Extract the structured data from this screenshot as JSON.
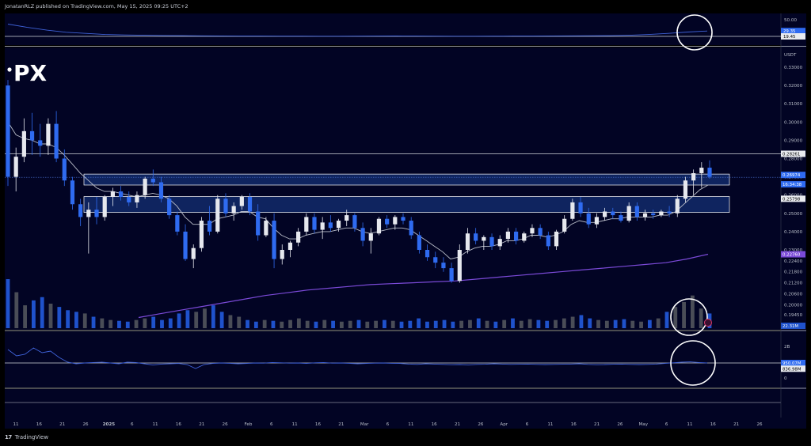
{
  "header": {
    "publisher_line": "JonatanRLZ published on TradingView.com, May 15, 2025 09:25 UTC+2"
  },
  "footer": {
    "logo_mark": "17",
    "brand": "TradingView"
  },
  "logo": {
    "text": "PX"
  },
  "colors": {
    "background": "#000000",
    "pane": "#020424",
    "up_candle": "#e6e8ee",
    "down_candle": "#2f6bf0",
    "ema_fast": "#b8bcc8",
    "ema_slow": "#7b4ad8",
    "zone_fill": "#1b3f8f",
    "volume_up": "#4a4d57",
    "volume_down": "#1f52cc"
  },
  "chart_data": [
    {
      "pane": "top-indicator",
      "type": "line",
      "scale_labels": [
        "50.00",
        "29.35",
        "19.45"
      ],
      "value_tags": [
        {
          "label": "29.35",
          "value": 29.35
        },
        {
          "label": "19.45",
          "value": 19.45
        }
      ],
      "horizontal_line_value": 19.45,
      "series": [
        {
          "values": [
            42,
            36,
            31,
            27,
            25,
            23,
            22,
            21.5,
            21,
            20.8,
            20.5,
            20.3,
            20.1,
            20,
            19.9,
            19.9,
            19.8,
            19.8,
            19.9,
            20,
            20.2,
            20.1,
            19.9,
            19.8,
            19.8,
            19.9,
            20,
            20.1,
            20.3,
            20.5,
            20.6,
            20.8,
            21.5,
            23,
            25,
            27.5,
            29.35
          ]
        }
      ]
    },
    {
      "pane": "price",
      "type": "candlestick",
      "quote_unit": "USDT",
      "y_axis_labels": [
        "0.33000",
        "0.32000",
        "0.31000",
        "0.30000",
        "0.29000",
        "0.28000",
        "0.27000",
        "0.26000",
        "0.25000",
        "0.24000",
        "0.23000",
        "0.22400",
        "0.21800",
        "0.21200",
        "0.20600",
        "0.20000",
        "0.19450"
      ],
      "price_tags": [
        {
          "label": "0.28261",
          "value": 0.28261
        },
        {
          "label": "0.26974",
          "value": 0.26974
        },
        {
          "label": "16:34:38",
          "value": 0.2672
        },
        {
          "label": "0.25798",
          "value": 0.25798
        },
        {
          "label": "0.22760",
          "value": 0.2276
        }
      ],
      "horizontal_line_value": 0.28261,
      "zones": [
        {
          "low": 0.2655,
          "high": 0.2715
        },
        {
          "low": 0.2505,
          "high": 0.2592
        }
      ],
      "candles_ohlc": [
        [
          0.32,
          0.323,
          0.265,
          0.27
        ],
        [
          0.27,
          0.286,
          0.262,
          0.281
        ],
        [
          0.281,
          0.302,
          0.278,
          0.295
        ],
        [
          0.295,
          0.305,
          0.282,
          0.29
        ],
        [
          0.29,
          0.299,
          0.281,
          0.287
        ],
        [
          0.287,
          0.302,
          0.282,
          0.299
        ],
        [
          0.299,
          0.306,
          0.278,
          0.28
        ],
        [
          0.28,
          0.285,
          0.265,
          0.268
        ],
        [
          0.268,
          0.27,
          0.252,
          0.255
        ],
        [
          0.255,
          0.258,
          0.243,
          0.248
        ],
        [
          0.248,
          0.256,
          0.228,
          0.252
        ],
        [
          0.252,
          0.259,
          0.244,
          0.248
        ],
        [
          0.248,
          0.26,
          0.246,
          0.259
        ],
        [
          0.259,
          0.264,
          0.254,
          0.262
        ],
        [
          0.262,
          0.265,
          0.257,
          0.259
        ],
        [
          0.259,
          0.262,
          0.254,
          0.256
        ],
        [
          0.256,
          0.262,
          0.253,
          0.26
        ],
        [
          0.26,
          0.27,
          0.258,
          0.269
        ],
        [
          0.269,
          0.274,
          0.265,
          0.267
        ],
        [
          0.267,
          0.27,
          0.256,
          0.258
        ],
        [
          0.258,
          0.26,
          0.247,
          0.249
        ],
        [
          0.249,
          0.251,
          0.238,
          0.24
        ],
        [
          0.24,
          0.244,
          0.224,
          0.225
        ],
        [
          0.225,
          0.233,
          0.22,
          0.231
        ],
        [
          0.231,
          0.248,
          0.229,
          0.246
        ],
        [
          0.246,
          0.254,
          0.238,
          0.24
        ],
        [
          0.24,
          0.26,
          0.239,
          0.258
        ],
        [
          0.258,
          0.261,
          0.248,
          0.25
        ],
        [
          0.25,
          0.256,
          0.246,
          0.254
        ],
        [
          0.254,
          0.26,
          0.252,
          0.259
        ],
        [
          0.259,
          0.261,
          0.249,
          0.251
        ],
        [
          0.251,
          0.255,
          0.235,
          0.238
        ],
        [
          0.238,
          0.248,
          0.237,
          0.246
        ],
        [
          0.246,
          0.25,
          0.22,
          0.225
        ],
        [
          0.225,
          0.233,
          0.222,
          0.23
        ],
        [
          0.23,
          0.235,
          0.226,
          0.234
        ],
        [
          0.234,
          0.242,
          0.232,
          0.24
        ],
        [
          0.24,
          0.25,
          0.238,
          0.248
        ],
        [
          0.248,
          0.25,
          0.239,
          0.241
        ],
        [
          0.241,
          0.248,
          0.236,
          0.245
        ],
        [
          0.245,
          0.249,
          0.24,
          0.242
        ],
        [
          0.242,
          0.247,
          0.24,
          0.246
        ],
        [
          0.246,
          0.252,
          0.243,
          0.249
        ],
        [
          0.249,
          0.25,
          0.24,
          0.242
        ],
        [
          0.242,
          0.245,
          0.232,
          0.235
        ],
        [
          0.235,
          0.242,
          0.228,
          0.239
        ],
        [
          0.239,
          0.248,
          0.238,
          0.247
        ],
        [
          0.247,
          0.249,
          0.242,
          0.244
        ],
        [
          0.244,
          0.249,
          0.241,
          0.248
        ],
        [
          0.248,
          0.25,
          0.244,
          0.246
        ],
        [
          0.246,
          0.248,
          0.236,
          0.238
        ],
        [
          0.238,
          0.24,
          0.228,
          0.23
        ],
        [
          0.23,
          0.233,
          0.224,
          0.226
        ],
        [
          0.226,
          0.229,
          0.22,
          0.223
        ],
        [
          0.223,
          0.226,
          0.218,
          0.22
        ],
        [
          0.22,
          0.223,
          0.212,
          0.213
        ],
        [
          0.213,
          0.233,
          0.212,
          0.23
        ],
        [
          0.23,
          0.242,
          0.228,
          0.239
        ],
        [
          0.239,
          0.242,
          0.233,
          0.235
        ],
        [
          0.235,
          0.238,
          0.23,
          0.237
        ],
        [
          0.237,
          0.239,
          0.23,
          0.232
        ],
        [
          0.232,
          0.238,
          0.23,
          0.236
        ],
        [
          0.236,
          0.242,
          0.234,
          0.24
        ],
        [
          0.24,
          0.242,
          0.233,
          0.235
        ],
        [
          0.235,
          0.24,
          0.234,
          0.239
        ],
        [
          0.239,
          0.244,
          0.237,
          0.242
        ],
        [
          0.242,
          0.244,
          0.236,
          0.238
        ],
        [
          0.238,
          0.24,
          0.23,
          0.232
        ],
        [
          0.232,
          0.241,
          0.23,
          0.24
        ],
        [
          0.24,
          0.249,
          0.239,
          0.247
        ],
        [
          0.247,
          0.258,
          0.246,
          0.256
        ],
        [
          0.256,
          0.259,
          0.248,
          0.25
        ],
        [
          0.25,
          0.253,
          0.242,
          0.244
        ],
        [
          0.244,
          0.25,
          0.242,
          0.248
        ],
        [
          0.248,
          0.253,
          0.246,
          0.251
        ],
        [
          0.251,
          0.253,
          0.247,
          0.249
        ],
        [
          0.249,
          0.251,
          0.245,
          0.246
        ],
        [
          0.246,
          0.256,
          0.245,
          0.254
        ],
        [
          0.254,
          0.256,
          0.246,
          0.248
        ],
        [
          0.248,
          0.252,
          0.246,
          0.25
        ],
        [
          0.25,
          0.252,
          0.247,
          0.249
        ],
        [
          0.249,
          0.252,
          0.248,
          0.251
        ],
        [
          0.251,
          0.254,
          0.248,
          0.25
        ],
        [
          0.25,
          0.26,
          0.248,
          0.258
        ],
        [
          0.258,
          0.27,
          0.256,
          0.268
        ],
        [
          0.268,
          0.274,
          0.26,
          0.272
        ],
        [
          0.272,
          0.278,
          0.264,
          0.275
        ],
        [
          0.275,
          0.279,
          0.269,
          0.27
        ]
      ],
      "ema_fast_values": [
        0.3,
        0.293,
        0.291,
        0.29,
        0.288,
        0.288,
        0.286,
        0.282,
        0.277,
        0.272,
        0.268,
        0.264,
        0.262,
        0.262,
        0.261,
        0.26,
        0.259,
        0.26,
        0.261,
        0.26,
        0.258,
        0.254,
        0.248,
        0.244,
        0.244,
        0.244,
        0.247,
        0.248,
        0.249,
        0.251,
        0.251,
        0.248,
        0.247,
        0.242,
        0.238,
        0.236,
        0.236,
        0.238,
        0.239,
        0.24,
        0.24,
        0.241,
        0.242,
        0.242,
        0.24,
        0.239,
        0.24,
        0.241,
        0.242,
        0.242,
        0.241,
        0.238,
        0.235,
        0.232,
        0.229,
        0.225,
        0.226,
        0.229,
        0.231,
        0.232,
        0.232,
        0.233,
        0.235,
        0.235,
        0.236,
        0.238,
        0.238,
        0.237,
        0.238,
        0.24,
        0.244,
        0.246,
        0.245,
        0.245,
        0.246,
        0.247,
        0.247,
        0.248,
        0.248,
        0.248,
        0.248,
        0.249,
        0.249,
        0.251,
        0.255,
        0.259,
        0.263,
        0.2655
      ],
      "ema_slow_values": [
        0.193,
        0.195,
        0.197,
        0.199,
        0.201,
        0.203,
        0.205,
        0.2065,
        0.208,
        0.209,
        0.21,
        0.211,
        0.2115,
        0.212,
        0.2125,
        0.213,
        0.214,
        0.215,
        0.216,
        0.217,
        0.218,
        0.219,
        0.22,
        0.221,
        0.222,
        0.223,
        0.225,
        0.2276
      ]
    },
    {
      "pane": "volume",
      "type": "bar",
      "value_tags": [
        {
          "label": "22.31M",
          "value": 22.31
        }
      ],
      "values": [
        60,
        44,
        28,
        34,
        38,
        30,
        26,
        22,
        20,
        18,
        14,
        12,
        10,
        9,
        8,
        10,
        12,
        14,
        10,
        12,
        18,
        22,
        20,
        24,
        28,
        20,
        16,
        14,
        10,
        8,
        10,
        9,
        8,
        10,
        12,
        9,
        8,
        10,
        9,
        8,
        9,
        10,
        8,
        9,
        10,
        9,
        8,
        9,
        12,
        8,
        9,
        10,
        8,
        9,
        10,
        12,
        9,
        8,
        10,
        12,
        9,
        11,
        10,
        9,
        10,
        12,
        14,
        16,
        12,
        10,
        9,
        10,
        11,
        9,
        8,
        10,
        12,
        20,
        26,
        32,
        40,
        24,
        18
      ]
    },
    {
      "pane": "bottom-indicator",
      "type": "line",
      "scale_labels": [
        "2B",
        "1B",
        "0"
      ],
      "value_tags": [
        {
          "label": "950.07M",
          "value": 950.07
        },
        {
          "label": "836.98M",
          "value": 836.98
        }
      ],
      "horizontal_line_value": 950.07,
      "series": [
        {
          "values": [
            1800,
            1400,
            1500,
            1900,
            1600,
            1700,
            1300,
            1000,
            900,
            950,
            980,
            1000,
            950,
            900,
            1000,
            980,
            900,
            820,
            880,
            900,
            920,
            850,
            600,
            850,
            920,
            950,
            930,
            900,
            920,
            950,
            940,
            980,
            960,
            940,
            950,
            920,
            960,
            980,
            940,
            950,
            930,
            900,
            920,
            940,
            950,
            930,
            920,
            880,
            860,
            900,
            880,
            860,
            840,
            850,
            830,
            860,
            870,
            900,
            880,
            860,
            870,
            880,
            860,
            850,
            860,
            870,
            880,
            900,
            860,
            840,
            850,
            870,
            880,
            860,
            850,
            860,
            880,
            920,
            960,
            1000,
            1020,
            980,
            950
          ]
        }
      ]
    }
  ],
  "time_axis": {
    "labels": [
      "11",
      "16",
      "21",
      "26",
      "2025",
      "6",
      "11",
      "16",
      "21",
      "26",
      "Feb",
      "6",
      "11",
      "16",
      "21",
      "Mar",
      "6",
      "11",
      "16",
      "21",
      "26",
      "Apr",
      "6",
      "11",
      "16",
      "21",
      "26",
      "May",
      "6",
      "11",
      "16",
      "21",
      "26"
    ]
  }
}
